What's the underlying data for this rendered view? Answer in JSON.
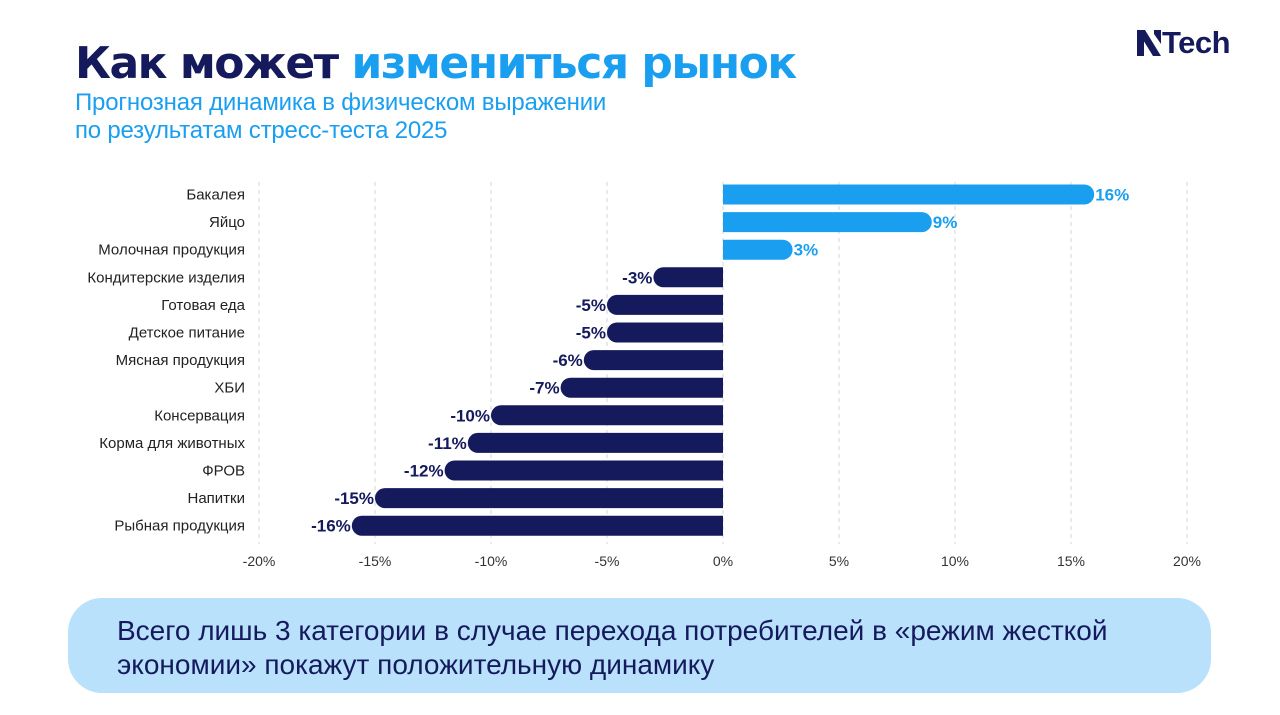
{
  "header": {
    "title_part1": "Как может",
    "title_part2": "измениться рынок",
    "subtitle_line1": "Прогнозная динамика в физическом выражении",
    "subtitle_line2": "по результатам стресс-теста 2025"
  },
  "logo": {
    "text": "Tech",
    "icon": "n-letter-logo-icon"
  },
  "colors": {
    "positive": "#1a9ff0",
    "negative": "#141a5c",
    "grid": "#d6d6d6",
    "axis_text": "#333333",
    "callout_bg": "#b9e1fb"
  },
  "chart_data": {
    "type": "bar",
    "orientation": "horizontal",
    "categories": [
      "Бакалея",
      "Яйцо",
      "Молочная продукция",
      "Кондитерские изделия",
      "Готовая еда",
      "Детское питание",
      "Мясная продукция",
      "ХБИ",
      "Консервация",
      "Корма для животных",
      "ФРОВ",
      "Напитки",
      "Рыбная продукция"
    ],
    "values": [
      16,
      9,
      3,
      -3,
      -5,
      -5,
      -6,
      -7,
      -10,
      -11,
      -12,
      -15,
      -16
    ],
    "data_labels": [
      "16%",
      "9%",
      "3%",
      "-3%",
      "-5%",
      "-5%",
      "-6%",
      "-7%",
      "-10%",
      "-11%",
      "-12%",
      "-15%",
      "-16%"
    ],
    "xlim": [
      -20,
      20
    ],
    "x_ticks": [
      -20,
      -15,
      -10,
      -5,
      0,
      5,
      10,
      15,
      20
    ],
    "x_tick_labels": [
      "-20%",
      "-15%",
      "-10%",
      "-5%",
      "0%",
      "5%",
      "10%",
      "15%",
      "20%"
    ],
    "grid": true,
    "grid_style": "dashed vertical"
  },
  "callout": {
    "text": "Всего лишь 3 категории в случае перехода потребителей в «режим жесткой экономии» покажут положительную динамику"
  }
}
